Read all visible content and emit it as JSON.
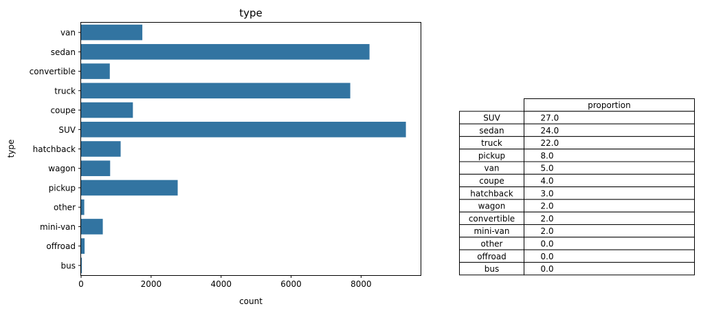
{
  "chart_data": [
    {
      "type": "bar",
      "orientation": "horizontal",
      "title": "type",
      "xlabel": "count",
      "ylabel": "type",
      "categories": [
        "van",
        "sedan",
        "convertible",
        "truck",
        "coupe",
        "SUV",
        "hatchback",
        "wagon",
        "pickup",
        "other",
        "mini-van",
        "offroad",
        "bus"
      ],
      "values": [
        1750,
        8240,
        820,
        7690,
        1480,
        9280,
        1130,
        830,
        2760,
        90,
        620,
        100,
        20
      ],
      "xlim": [
        0,
        9700
      ],
      "xticks": [
        "0",
        "2000",
        "4000",
        "6000",
        "8000"
      ],
      "xtick_values": [
        0,
        2000,
        4000,
        6000,
        8000
      ],
      "bar_color": "#3274a1",
      "grid": false
    },
    {
      "type": "table",
      "column_header": "proportion",
      "rows": [
        {
          "label": "SUV",
          "value": "27.0"
        },
        {
          "label": "sedan",
          "value": "24.0"
        },
        {
          "label": "truck",
          "value": "22.0"
        },
        {
          "label": "pickup",
          "value": "8.0"
        },
        {
          "label": "van",
          "value": "5.0"
        },
        {
          "label": "coupe",
          "value": "4.0"
        },
        {
          "label": "hatchback",
          "value": "3.0"
        },
        {
          "label": "wagon",
          "value": "2.0"
        },
        {
          "label": "convertible",
          "value": "2.0"
        },
        {
          "label": "mini-van",
          "value": "2.0"
        },
        {
          "label": "other",
          "value": "0.0"
        },
        {
          "label": "offroad",
          "value": "0.0"
        },
        {
          "label": "bus",
          "value": "0.0"
        }
      ]
    }
  ]
}
